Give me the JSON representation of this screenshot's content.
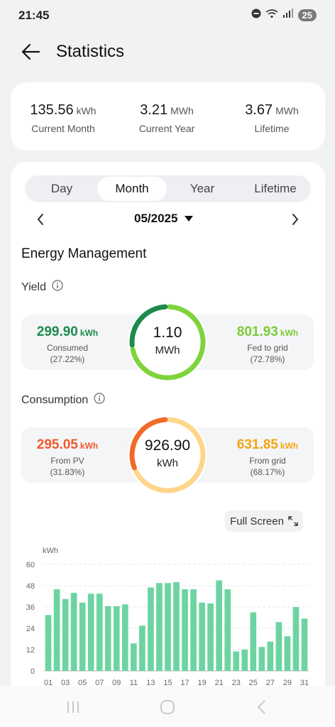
{
  "status_bar": {
    "time": "21:45",
    "battery": "25"
  },
  "header": {
    "title": "Statistics"
  },
  "summary": [
    {
      "value": "135.56",
      "unit": "kWh",
      "label": "Current Month"
    },
    {
      "value": "3.21",
      "unit": "MWh",
      "label": "Current Year"
    },
    {
      "value": "3.67",
      "unit": "MWh",
      "label": "Lifetime"
    }
  ],
  "tabs": [
    "Day",
    "Month",
    "Year",
    "Lifetime"
  ],
  "active_tab": "Month",
  "date": {
    "label": "05/2025"
  },
  "energy": {
    "title": "Energy Management",
    "yield": {
      "label": "Yield",
      "left_value": "299.90",
      "left_unit": "kWh",
      "left_label": "Consumed",
      "left_pct": "(27.22%)",
      "right_value": "801.93",
      "right_unit": "kWh",
      "right_label": "Fed to grid",
      "right_pct": "(72.78%)",
      "center_value": "1.10",
      "center_unit": "MWh",
      "share_left": 0.2722,
      "colors": {
        "left": "#1e8a4c",
        "right": "#7fd33b"
      }
    },
    "consumption": {
      "label": "Consumption",
      "left_value": "295.05",
      "left_unit": "kWh",
      "left_label": "From PV",
      "left_pct": "(31.83%)",
      "right_value": "631.85",
      "right_unit": "kWh",
      "right_label": "From grid",
      "right_pct": "(68.17%)",
      "center_value": "926.90",
      "center_unit": "kWh",
      "share_left": 0.3183,
      "colors": {
        "left": "#f26a2a",
        "right": "#ffd58a"
      }
    }
  },
  "fullscreen_label": "Full Screen",
  "chart_data": {
    "type": "bar",
    "ylabel": "kWh",
    "ylim": [
      0,
      60
    ],
    "yticks": [
      0,
      12,
      24,
      36,
      48,
      60
    ],
    "xtick_labels": [
      "01",
      "03",
      "05",
      "07",
      "09",
      "11",
      "13",
      "15",
      "17",
      "19",
      "21",
      "23",
      "25",
      "27",
      "29",
      "31"
    ],
    "categories": [
      "01",
      "02",
      "03",
      "04",
      "05",
      "06",
      "07",
      "08",
      "09",
      "10",
      "11",
      "12",
      "13",
      "14",
      "15",
      "16",
      "17",
      "18",
      "19",
      "20",
      "21",
      "22",
      "23",
      "24",
      "25",
      "26",
      "27",
      "28",
      "29",
      "30",
      "31"
    ],
    "values": [
      31.5,
      46,
      40.5,
      44,
      38.5,
      43.5,
      43.5,
      36.5,
      36.5,
      37.5,
      15.5,
      25.5,
      47,
      49.5,
      49.5,
      50,
      46,
      46,
      38.5,
      38,
      51,
      46,
      11,
      12,
      33,
      13.5,
      16.5,
      27.5,
      19.5,
      36,
      29.5
    ],
    "grid": true,
    "bar_color": "#6dd4a1"
  }
}
